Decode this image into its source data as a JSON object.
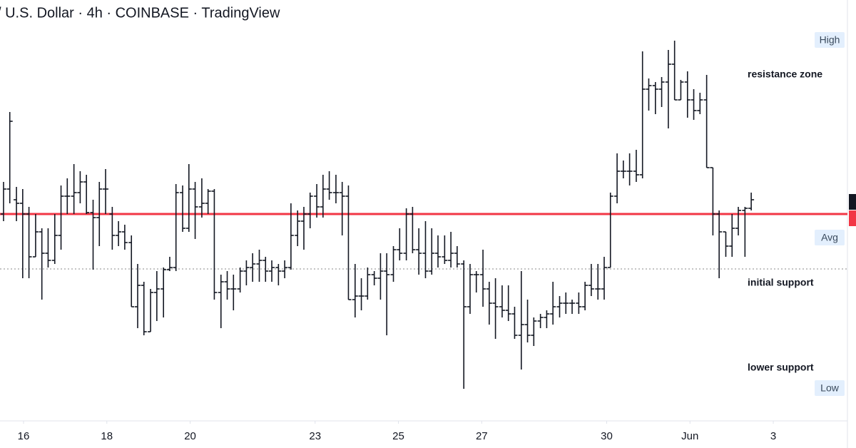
{
  "chart_data": {
    "type": "ohlc",
    "title": "/ U.S. Dollar · 4h · COINBASE · TradingView",
    "color": "#131722",
    "xlim": [
      15.435,
      35.78
    ],
    "ylim": [
      10,
      600
    ],
    "xticks": [
      16,
      18,
      20,
      23,
      25,
      27,
      30,
      {
        "value": 32,
        "label": "Jun"
      },
      {
        "value": 34,
        "label": "3"
      }
    ],
    "levels": [
      {
        "value": 544,
        "label": "High"
      },
      {
        "value": 267,
        "label": "Avg"
      },
      {
        "value": 56,
        "label": "Low"
      }
    ],
    "lines": [
      {
        "value": 300,
        "color": "#f23645",
        "style": "solid"
      },
      {
        "value": 223,
        "color": "#888888",
        "style": "dotted"
      }
    ],
    "annotations": [
      "resistance zone",
      "initial support",
      "lower support"
    ],
    "x": [
      15.52,
      15.67,
      15.83,
      15.98,
      16.13,
      16.29,
      16.44,
      16.59,
      16.75,
      16.9,
      17.05,
      17.21,
      17.36,
      17.51,
      17.67,
      17.82,
      17.97,
      18.13,
      18.28,
      18.43,
      18.59,
      18.74,
      18.89,
      19.05,
      19.2,
      19.36,
      19.51,
      19.66,
      19.82,
      19.97,
      20.12,
      20.28,
      20.43,
      20.58,
      20.74,
      20.89,
      21.04,
      21.2,
      21.35,
      21.5,
      21.66,
      21.81,
      21.96,
      22.12,
      22.27,
      22.42,
      22.58,
      22.73,
      22.88,
      23.04,
      23.19,
      23.34,
      23.5,
      23.65,
      23.8,
      23.96,
      24.11,
      24.26,
      24.42,
      24.57,
      24.72,
      24.88,
      25.03,
      25.19,
      25.34,
      25.49,
      25.65,
      25.8,
      25.95,
      26.11,
      26.26,
      26.41,
      26.57,
      26.72,
      26.87,
      27.03,
      27.18,
      27.33,
      27.49,
      27.64,
      27.79,
      27.95,
      28.1,
      28.25,
      28.41,
      28.56,
      28.71,
      28.87,
      29.02,
      29.17,
      29.33,
      29.48,
      29.63,
      29.79,
      29.94,
      30.09,
      30.25,
      30.4,
      30.55,
      30.71,
      30.86,
      31.01,
      31.17,
      31.32,
      31.48,
      31.63,
      31.78,
      31.94,
      32.09,
      32.24,
      32.4,
      32.55,
      32.7,
      32.86,
      33.01,
      33.16,
      33.32,
      33.47
    ],
    "open": [
      300,
      335,
      320,
      315,
      300,
      240,
      275,
      245,
      235,
      270,
      325,
      325,
      330,
      345,
      302,
      295,
      335,
      300,
      270,
      275,
      260,
      170,
      200,
      135,
      190,
      195,
      222,
      225,
      330,
      280,
      335,
      310,
      315,
      332,
      190,
      205,
      195,
      195,
      220,
      225,
      230,
      235,
      220,
      225,
      220,
      225,
      270,
      290,
      300,
      325,
      310,
      335,
      330,
      330,
      325,
      180,
      185,
      185,
      215,
      210,
      220,
      215,
      250,
      245,
      300,
      250,
      245,
      220,
      245,
      240,
      235,
      245,
      230,
      170,
      215,
      215,
      195,
      175,
      170,
      165,
      160,
      130,
      145,
      130,
      150,
      155,
      160,
      170,
      175,
      175,
      175,
      170,
      200,
      195,
      195,
      225,
      325,
      360,
      360,
      360,
      355,
      475,
      480,
      475,
      485,
      510,
      460,
      485,
      460,
      445,
      460,
      365,
      300,
      275,
      255,
      280,
      305,
      308
    ],
    "high": [
      345,
      443,
      338,
      335,
      310,
      300,
      280,
      280,
      300,
      340,
      350,
      370,
      360,
      355,
      320,
      345,
      363,
      310,
      290,
      285,
      270,
      230,
      205,
      195,
      220,
      225,
      240,
      342,
      340,
      370,
      345,
      350,
      335,
      335,
      215,
      220,
      215,
      225,
      235,
      245,
      250,
      240,
      235,
      230,
      235,
      315,
      305,
      310,
      330,
      342,
      355,
      360,
      355,
      345,
      340,
      230,
      210,
      225,
      220,
      245,
      245,
      255,
      280,
      308,
      310,
      280,
      290,
      280,
      270,
      270,
      275,
      255,
      235,
      230,
      220,
      250,
      205,
      210,
      200,
      200,
      170,
      220,
      180,
      155,
      160,
      165,
      205,
      185,
      190,
      180,
      190,
      205,
      230,
      230,
      240,
      330,
      385,
      375,
      385,
      390,
      528,
      490,
      485,
      492,
      530,
      543,
      488,
      500,
      475,
      470,
      495,
      365,
      305,
      275,
      300,
      310,
      310,
      330
    ],
    "low": [
      290,
      315,
      290,
      210,
      210,
      240,
      180,
      225,
      230,
      250,
      300,
      300,
      315,
      300,
      222,
      255,
      300,
      250,
      255,
      250,
      170,
      140,
      130,
      135,
      150,
      155,
      220,
      220,
      275,
      275,
      265,
      295,
      300,
      180,
      140,
      180,
      165,
      190,
      200,
      205,
      205,
      205,
      205,
      200,
      210,
      222,
      255,
      250,
      280,
      295,
      295,
      320,
      315,
      270,
      180,
      155,
      165,
      180,
      200,
      180,
      130,
      205,
      235,
      235,
      245,
      215,
      210,
      215,
      225,
      230,
      225,
      225,
      55,
      160,
      190,
      170,
      145,
      125,
      155,
      150,
      125,
      82,
      120,
      115,
      140,
      140,
      145,
      155,
      160,
      160,
      160,
      165,
      185,
      180,
      180,
      225,
      315,
      350,
      340,
      345,
      350,
      445,
      440,
      450,
      420,
      460,
      460,
      435,
      432,
      440,
      365,
      270,
      210,
      240,
      240,
      270,
      240,
      305
    ],
    "close": [
      335,
      430,
      315,
      300,
      240,
      275,
      245,
      235,
      270,
      325,
      325,
      330,
      345,
      302,
      295,
      335,
      335,
      270,
      275,
      260,
      170,
      200,
      135,
      190,
      195,
      222,
      225,
      330,
      280,
      335,
      310,
      315,
      332,
      190,
      205,
      195,
      195,
      220,
      225,
      230,
      235,
      220,
      225,
      220,
      225,
      270,
      290,
      300,
      325,
      310,
      335,
      330,
      330,
      325,
      180,
      185,
      185,
      215,
      210,
      220,
      215,
      250,
      245,
      300,
      250,
      245,
      220,
      245,
      240,
      235,
      245,
      230,
      170,
      215,
      215,
      195,
      175,
      170,
      165,
      160,
      130,
      145,
      130,
      150,
      155,
      160,
      170,
      175,
      175,
      175,
      170,
      200,
      195,
      195,
      225,
      325,
      360,
      360,
      360,
      355,
      475,
      480,
      475,
      485,
      510,
      460,
      485,
      460,
      445,
      460,
      365,
      300,
      275,
      255,
      280,
      305,
      308,
      320
    ]
  }
}
